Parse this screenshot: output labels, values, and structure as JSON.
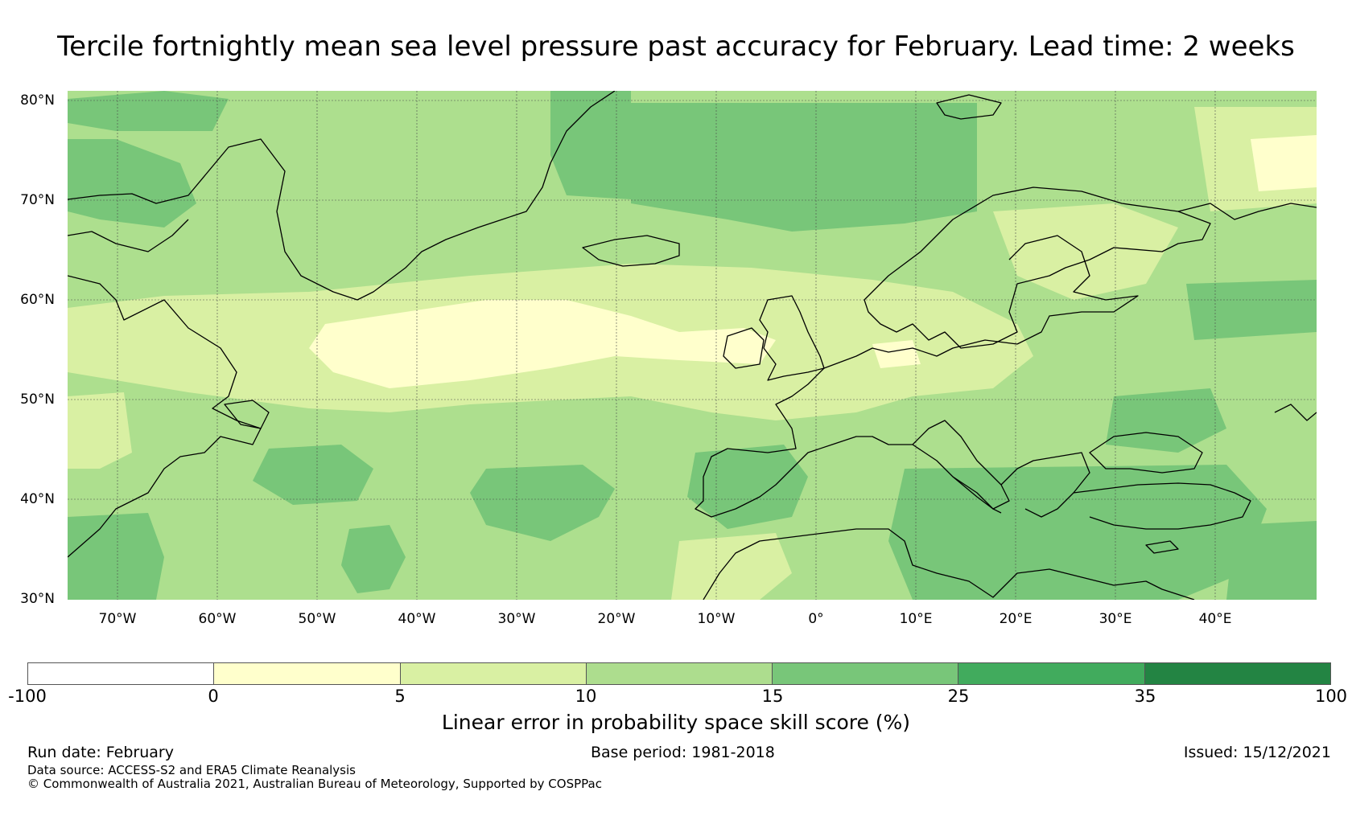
{
  "title": "Tercile fortnightly mean sea level pressure past accuracy for February. Lead time: 2 weeks",
  "map": {
    "lat_labels": [
      "80°N",
      "70°N",
      "60°N",
      "50°N",
      "40°N",
      "30°N"
    ],
    "lon_labels": [
      "70°W",
      "60°W",
      "50°W",
      "40°W",
      "30°W",
      "20°W",
      "10°W",
      "0°",
      "10°E",
      "20°E",
      "30°E",
      "40°E"
    ],
    "lat_range": [
      30,
      81
    ],
    "lon_range": [
      -75,
      50
    ],
    "background_class_color": "#addf8e",
    "coastline_color": "#000000",
    "gridline_color": "#4a4a4a"
  },
  "legend": {
    "ticks": [
      "-100",
      "0",
      "5",
      "10",
      "15",
      "25",
      "35",
      "100"
    ],
    "colors": [
      "#ffffff",
      "#ffffcc",
      "#d9f0a3",
      "#addd8e",
      "#78c679",
      "#41ab5d",
      "#238443"
    ],
    "label": "Linear error in probability space skill score (%)"
  },
  "footer": {
    "run_date": "Run date: February",
    "base_period": "Base period: 1981-2018",
    "issued": "Issued: 15/12/2021",
    "data_source": "Data source: ACCESS-S2 and ERA5 Climate Reanalysis",
    "copyright": "© Commonwealth of Australia 2021, Australian Bureau of Meteorology, Supported by COSPPac"
  }
}
